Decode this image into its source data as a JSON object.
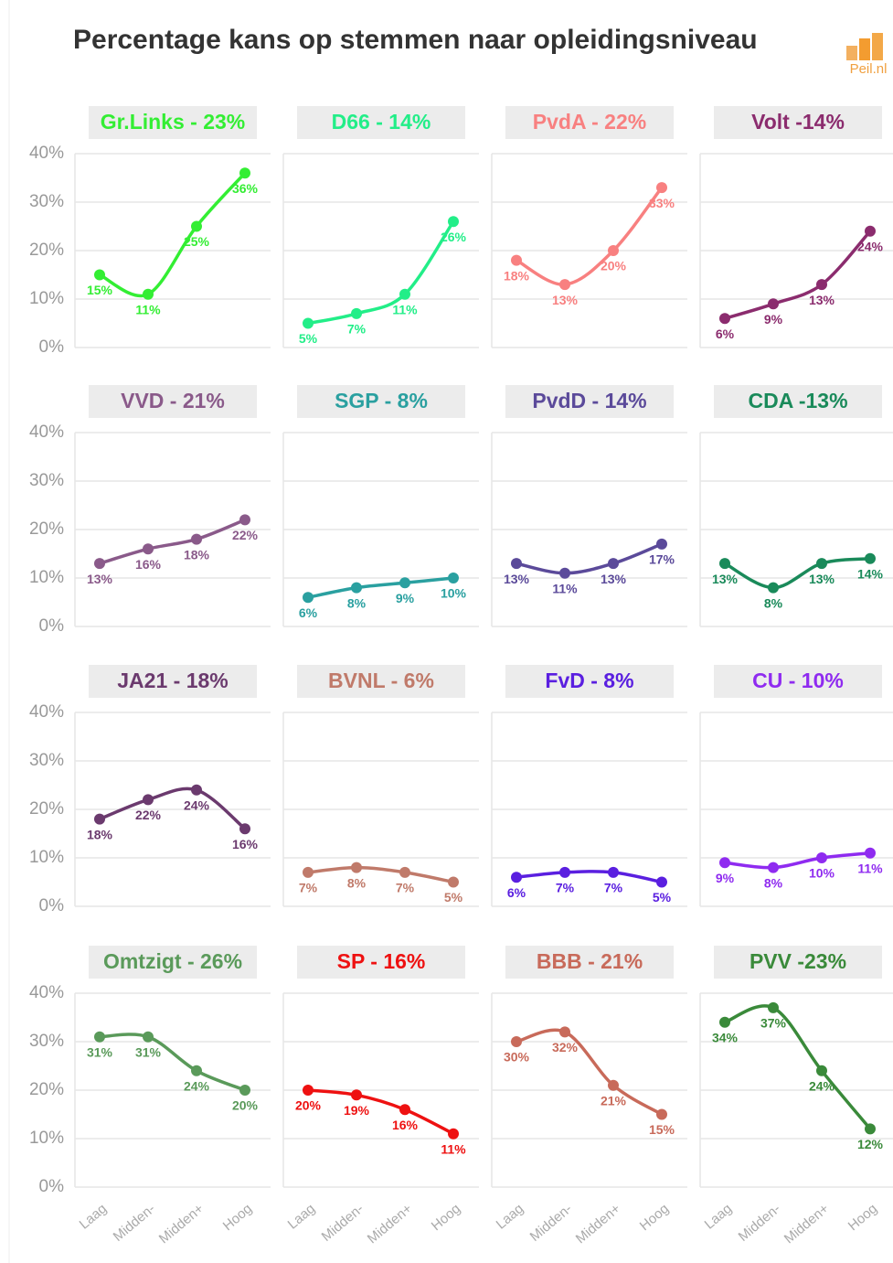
{
  "title": "Percentage kans op stemmen naar opleidingsniveau",
  "logo": "Peil.nl",
  "chart_data": [
    {
      "type": "line",
      "title": "Gr.Links - 23%",
      "color": "#33ee33",
      "values": [
        15,
        11,
        25,
        36
      ],
      "value_labels": [
        "15%",
        "11%",
        "25%",
        "36%"
      ],
      "ylim": [
        0,
        40
      ],
      "yticks": [
        {
          "value": 0,
          "label": "0%"
        },
        {
          "value": 10,
          "label": "10%"
        },
        {
          "value": 20,
          "label": "20%"
        },
        {
          "value": 30,
          "label": "30%"
        },
        {
          "value": 40,
          "label": "40%"
        }
      ]
    },
    {
      "type": "line",
      "title": "D66 - 14%",
      "color": "#22ee88",
      "values": [
        5,
        7,
        11,
        26
      ],
      "value_labels": [
        "5%",
        "7%",
        "11%",
        "26%"
      ],
      "ylim": [
        0,
        40
      ],
      "yticks": [
        0,
        10,
        20,
        30,
        40
      ]
    },
    {
      "type": "line",
      "title": "PvdA - 22%",
      "color": "#f88080",
      "values": [
        18,
        13,
        20,
        33
      ],
      "value_labels": [
        "18%",
        "13%",
        "20%",
        "33%"
      ],
      "ylim": [
        0,
        40
      ],
      "yticks": [
        0,
        10,
        20,
        30,
        40
      ]
    },
    {
      "type": "line",
      "title": "Volt -14%",
      "color": "#8b2c6e",
      "values": [
        6,
        9,
        13,
        24
      ],
      "value_labels": [
        "6%",
        "9%",
        "13%",
        "24%"
      ],
      "ylim": [
        0,
        40
      ],
      "yticks": [
        0,
        10,
        20,
        30,
        40
      ]
    },
    {
      "type": "line",
      "title": "VVD - 21%",
      "color": "#8a5a8a",
      "values": [
        13,
        16,
        18,
        22
      ],
      "value_labels": [
        "13%",
        "16%",
        "18%",
        "22%"
      ],
      "ylim": [
        0,
        40
      ],
      "yticks": [
        {
          "value": 0,
          "label": "0%"
        },
        {
          "value": 10,
          "label": "10%"
        },
        {
          "value": 20,
          "label": "20%"
        },
        {
          "value": 30,
          "label": "30%"
        },
        {
          "value": 40,
          "label": "40%"
        }
      ]
    },
    {
      "type": "line",
      "title": "SGP - 8%",
      "color": "#2aa0a0",
      "values": [
        6,
        8,
        9,
        10
      ],
      "value_labels": [
        "6%",
        "8%",
        "9%",
        "10%"
      ],
      "ylim": [
        0,
        40
      ],
      "yticks": [
        0,
        10,
        20,
        30,
        40
      ]
    },
    {
      "type": "line",
      "title": "PvdD - 14%",
      "color": "#5b4a9a",
      "values": [
        13,
        11,
        13,
        17
      ],
      "value_labels": [
        "13%",
        "11%",
        "13%",
        "17%"
      ],
      "ylim": [
        0,
        40
      ],
      "yticks": [
        0,
        10,
        20,
        30,
        40
      ]
    },
    {
      "type": "line",
      "title": "CDA -13%",
      "color": "#1a8a5a",
      "values": [
        13,
        8,
        13,
        14
      ],
      "value_labels": [
        "13%",
        "8%",
        "13%",
        "14%"
      ],
      "ylim": [
        0,
        40
      ],
      "yticks": [
        0,
        10,
        20,
        30,
        40
      ]
    },
    {
      "type": "line",
      "title": "JA21 - 18%",
      "color": "#6b3a6e",
      "values": [
        18,
        22,
        24,
        16
      ],
      "value_labels": [
        "18%",
        "22%",
        "24%",
        "16%"
      ],
      "ylim": [
        0,
        40
      ],
      "yticks": [
        {
          "value": 0,
          "label": "0%"
        },
        {
          "value": 10,
          "label": "10%"
        },
        {
          "value": 20,
          "label": "20%"
        },
        {
          "value": 30,
          "label": "30%"
        },
        {
          "value": 40,
          "label": "40%"
        }
      ]
    },
    {
      "type": "line",
      "title": "BVNL - 6%",
      "color": "#c07a6a",
      "values": [
        7,
        8,
        7,
        5
      ],
      "value_labels": [
        "7%",
        "8%",
        "7%",
        "5%"
      ],
      "ylim": [
        0,
        40
      ],
      "yticks": [
        0,
        10,
        20,
        30,
        40
      ]
    },
    {
      "type": "line",
      "title": "FvD - 8%",
      "color": "#5a1fe0",
      "values": [
        6,
        7,
        7,
        5
      ],
      "value_labels": [
        "6%",
        "7%",
        "7%",
        "5%"
      ],
      "ylim": [
        0,
        40
      ],
      "yticks": [
        0,
        10,
        20,
        30,
        40
      ]
    },
    {
      "type": "line",
      "title": "CU - 10%",
      "color": "#8f2bf0",
      "values": [
        9,
        8,
        10,
        11
      ],
      "value_labels": [
        "9%",
        "8%",
        "10%",
        "11%"
      ],
      "ylim": [
        0,
        40
      ],
      "yticks": [
        0,
        10,
        20,
        30,
        40
      ]
    },
    {
      "type": "line",
      "title": "Omtzigt - 26%",
      "color": "#5a9a5a",
      "categories": [
        "Laag",
        "Midden-",
        "Midden+",
        "Hoog"
      ],
      "values": [
        31,
        31,
        24,
        20
      ],
      "value_labels": [
        "31%",
        "31%",
        "24%",
        "20%"
      ],
      "ylim": [
        0,
        40
      ],
      "yticks": [
        {
          "value": 0,
          "label": "0%"
        },
        {
          "value": 10,
          "label": "10%"
        },
        {
          "value": 20,
          "label": "20%"
        },
        {
          "value": 30,
          "label": "30%"
        },
        {
          "value": 40,
          "label": "40%"
        }
      ]
    },
    {
      "type": "line",
      "title": "SP - 16%",
      "color": "#ee1111",
      "categories": [
        "Laag",
        "Midden-",
        "Midden+",
        "Hoog"
      ],
      "values": [
        20,
        19,
        16,
        11
      ],
      "value_labels": [
        "20%",
        "19%",
        "16%",
        "11%"
      ],
      "ylim": [
        0,
        40
      ],
      "yticks": [
        0,
        10,
        20,
        30,
        40
      ]
    },
    {
      "type": "line",
      "title": "BBB - 21%",
      "color": "#c86a5a",
      "categories": [
        "Laag",
        "Midden-",
        "Midden+",
        "Hoog"
      ],
      "values": [
        30,
        32,
        21,
        15
      ],
      "value_labels": [
        "30%",
        "32%",
        "21%",
        "15%"
      ],
      "ylim": [
        0,
        40
      ],
      "yticks": [
        0,
        10,
        20,
        30,
        40
      ]
    },
    {
      "type": "line",
      "title": "PVV -23%",
      "color": "#3a8a3a",
      "categories": [
        "Laag",
        "Midden-",
        "Midden+",
        "Hoog"
      ],
      "values": [
        34,
        37,
        24,
        12
      ],
      "value_labels": [
        "34%",
        "37%",
        "24%",
        "12%"
      ],
      "ylim": [
        0,
        40
      ],
      "yticks": [
        0,
        10,
        20,
        30,
        40
      ]
    }
  ]
}
